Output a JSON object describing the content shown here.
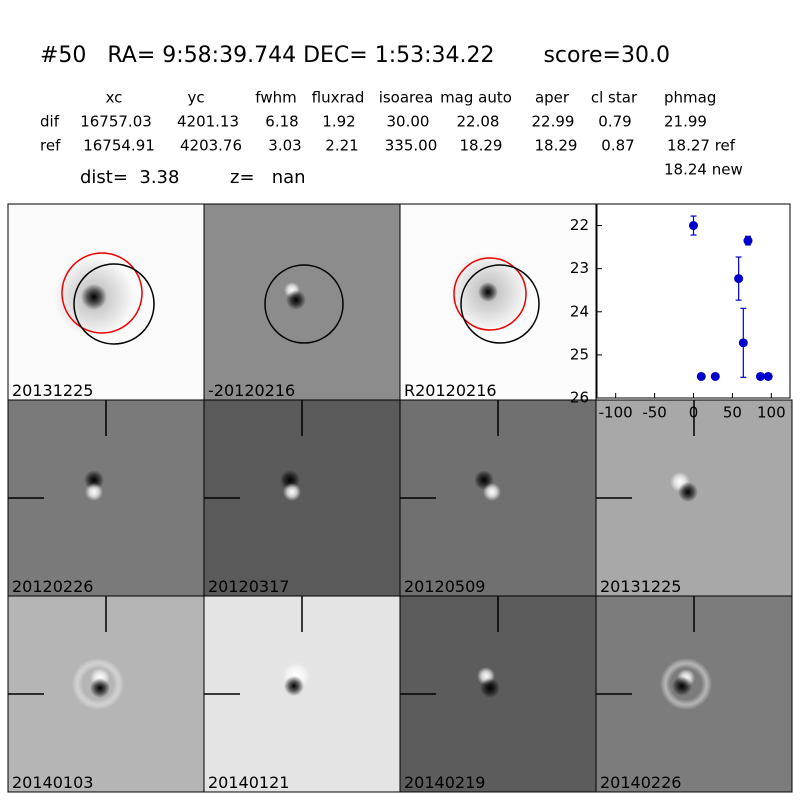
{
  "header": {
    "title": "#50   RA= 9:58:39.744 DEC= 1:53:34.22       score=30.0",
    "columns": [
      "xc",
      "yc",
      "fwhm",
      "fluxrad",
      "isoarea",
      "mag auto",
      "aper",
      "cl star",
      "phmag"
    ],
    "rows": [
      {
        "label": "dif",
        "cells": [
          "16757.03",
          "4201.13",
          "6.18",
          "1.92",
          "30.00",
          "22.08",
          "22.99",
          "0.79",
          "21.99"
        ]
      },
      {
        "label": "ref",
        "cells": [
          "16754.91",
          "4203.76",
          "3.03",
          "2.21",
          "335.00",
          "18.29",
          "18.29",
          "0.87",
          "18.27 ref"
        ]
      }
    ],
    "extra": "18.24 new",
    "dist": "dist=  3.38",
    "z": "z=   nan"
  },
  "panels": [
    {
      "label": "20131225"
    },
    {
      "label": "-20120216"
    },
    {
      "label": "R20120216"
    },
    {
      "label": "20120226"
    },
    {
      "label": "20120317"
    },
    {
      "label": "20120509"
    },
    {
      "label": "20131225",
      "color": "#ff0000"
    },
    {
      "label": "20140103"
    },
    {
      "label": "20140121"
    },
    {
      "label": "20140219"
    },
    {
      "label": "20140226"
    }
  ],
  "chart_data": {
    "type": "scatter",
    "color": "#0000cc",
    "x": [
      0,
      10,
      28,
      58,
      64,
      70,
      86,
      96
    ],
    "values": [
      22.0,
      25.5,
      25.5,
      23.23,
      24.72,
      22.35,
      25.5,
      25.5
    ],
    "errors": [
      0.22,
      0.05,
      0.05,
      0.5,
      0.8,
      0.1,
      0.05,
      0.05
    ],
    "xlim": [
      -124,
      124
    ],
    "ylim": [
      21.5,
      26
    ],
    "invert_y": true,
    "xticks": [
      -100,
      -50,
      0,
      50,
      100
    ],
    "yticks": [
      22,
      23,
      24,
      25,
      26
    ]
  }
}
